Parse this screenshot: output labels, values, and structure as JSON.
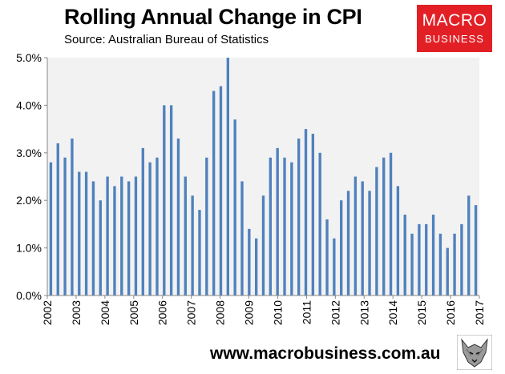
{
  "header": {
    "title": "Rolling Annual Change in CPI",
    "subtitle": "Source: Australian Bureau of Statistics"
  },
  "logo": {
    "line1": "MACRO",
    "line2": "BUSINESS"
  },
  "footer": {
    "url": "www.macrobusiness.com.au"
  },
  "colors": {
    "bar": "#4f81bd",
    "plot_bg": "#f2f2f2",
    "logo_bg": "#e31f26"
  },
  "chart_data": {
    "type": "bar",
    "title": "Rolling Annual Change in CPI",
    "subtitle": "Source: Australian Bureau of Statistics",
    "xlabel": "",
    "ylabel": "",
    "ylim": [
      0,
      5
    ],
    "y_ticks": [
      "0.0%",
      "1.0%",
      "2.0%",
      "3.0%",
      "4.0%",
      "5.0%"
    ],
    "x_start": 2002,
    "x_end": 2017,
    "x_ticks": [
      "2002",
      "2003",
      "2004",
      "2005",
      "2006",
      "2007",
      "2008",
      "2009",
      "2010",
      "2011",
      "2012",
      "2013",
      "2014",
      "2015",
      "2016",
      "2017"
    ],
    "grid": false,
    "legend": "none",
    "values": [
      2.8,
      3.2,
      2.9,
      3.3,
      2.6,
      2.6,
      2.4,
      2.0,
      2.5,
      2.3,
      2.5,
      2.4,
      2.5,
      3.1,
      2.8,
      2.9,
      4.0,
      4.0,
      3.3,
      2.5,
      2.1,
      1.8,
      2.9,
      4.3,
      4.4,
      5.0,
      3.7,
      2.4,
      1.4,
      1.2,
      2.1,
      2.9,
      3.1,
      2.9,
      2.8,
      3.3,
      3.5,
      3.4,
      3.0,
      1.6,
      1.2,
      2.0,
      2.2,
      2.5,
      2.4,
      2.2,
      2.7,
      2.9,
      3.0,
      2.3,
      1.7,
      1.3,
      1.5,
      1.5,
      1.7,
      1.3,
      1.0,
      1.3,
      1.5,
      2.1,
      1.9
    ]
  }
}
